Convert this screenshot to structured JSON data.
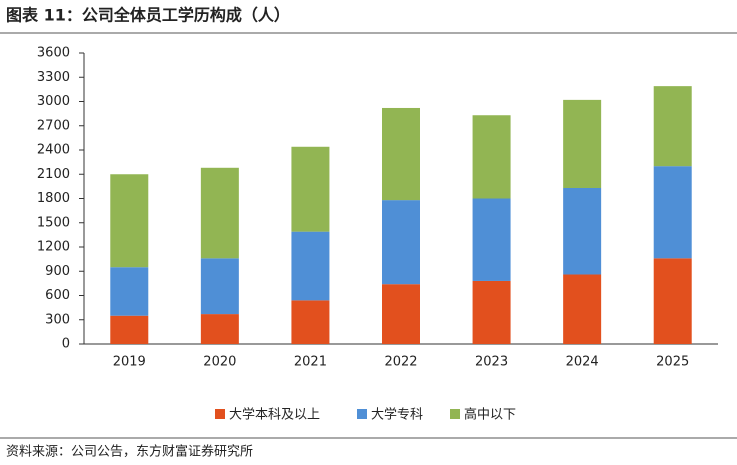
{
  "chart_data": {
    "type": "stacked-bar",
    "title": "图表 11：公司全体员工学历构成（人）",
    "source": "资料来源：公司公告，东方财富证券研究所",
    "categories": [
      "2019",
      "2020",
      "2021",
      "2022",
      "2023",
      "2024",
      "2025"
    ],
    "series": [
      {
        "name": "大学本科及以上",
        "color": "#e2501e",
        "values": [
          350,
          370,
          540,
          740,
          780,
          860,
          1060
        ]
      },
      {
        "name": "大学专科",
        "color": "#4f8fd6",
        "values": [
          600,
          690,
          850,
          1040,
          1020,
          1070,
          1140
        ]
      },
      {
        "name": "高中以下",
        "color": "#92b553",
        "values": [
          1150,
          1120,
          1050,
          1140,
          1030,
          1090,
          990
        ]
      }
    ],
    "ylim": [
      0,
      3600
    ],
    "yticks": [
      0,
      300,
      600,
      900,
      1200,
      1500,
      1800,
      2100,
      2400,
      2700,
      3000,
      3300,
      3600
    ],
    "grid": false,
    "legend": "bottom"
  }
}
